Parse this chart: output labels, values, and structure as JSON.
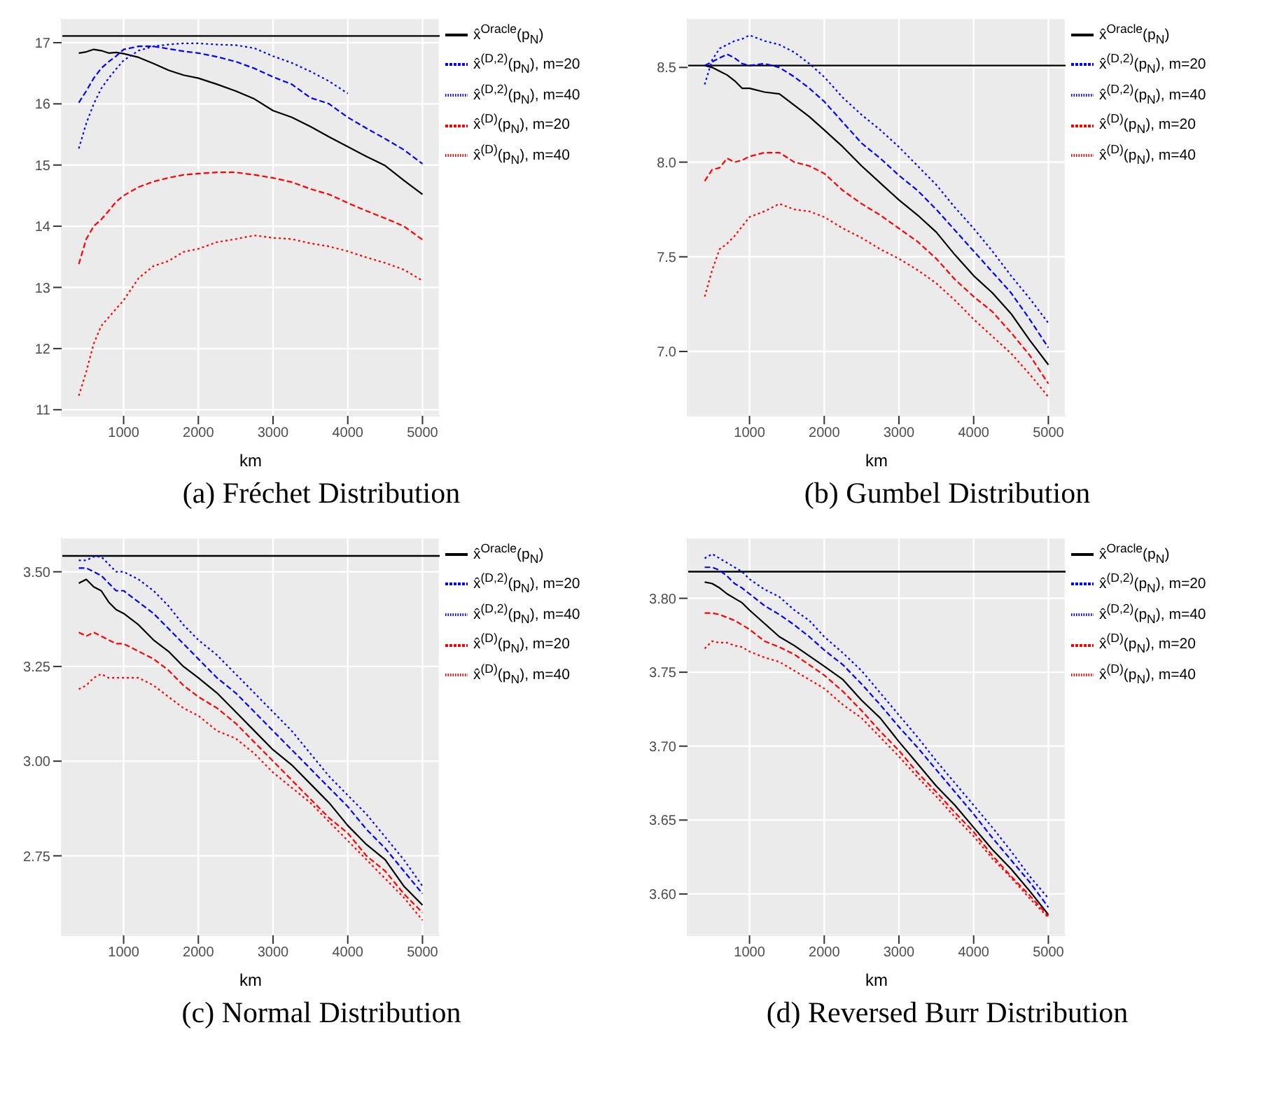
{
  "chart_data": [
    {
      "type": "line",
      "title": "(a) Fréchet Distribution",
      "xlabel": "km",
      "legend": "right",
      "grid": true,
      "marker": "none",
      "x": [
        400,
        500,
        600,
        700,
        800,
        900,
        1000,
        1200,
        1400,
        1600,
        1800,
        2000,
        2250,
        2500,
        2750,
        3000,
        3250,
        3500,
        3750,
        4000,
        4250,
        4500,
        4750,
        5000
      ],
      "xlim": [
        170,
        5230
      ],
      "xticks": [
        1000,
        2000,
        3000,
        4000,
        5000
      ],
      "ylim": [
        10.9,
        17.4
      ],
      "yticks": [
        11,
        12,
        13,
        14,
        15,
        16,
        17
      ],
      "ref_lines": [
        {
          "axis": "y",
          "value": 17.11,
          "color": "#000000",
          "line_style": "solid"
        }
      ],
      "series": [
        {
          "name": "x̂$^{Oracle}$(p$_{N}$)",
          "color": "#000000",
          "line_style": "solid",
          "values": [
            16.83,
            16.85,
            16.89,
            16.87,
            16.83,
            16.84,
            16.82,
            16.76,
            16.66,
            16.55,
            16.47,
            16.42,
            16.32,
            16.21,
            16.08,
            15.89,
            15.78,
            15.63,
            15.46,
            15.3,
            15.14,
            14.99,
            14.75,
            14.52
          ]
        },
        {
          "name": "x̂$^{(D,2)}$(p$_{N}$), m=20",
          "color": "#0000ff",
          "line_style": "dashed",
          "values": [
            16.02,
            16.21,
            16.42,
            16.58,
            16.69,
            16.78,
            16.89,
            16.94,
            16.94,
            16.9,
            16.86,
            16.83,
            16.77,
            16.69,
            16.58,
            16.44,
            16.32,
            16.1,
            16.0,
            15.78,
            15.6,
            15.43,
            15.25,
            15.02
          ]
        },
        {
          "name": "x̂$^{(D,2)}$(p$_{N}$), m=40",
          "color": "#0000ff",
          "line_style": "dotted",
          "values": [
            15.27,
            15.68,
            16.0,
            16.25,
            16.42,
            16.57,
            16.71,
            16.87,
            16.94,
            16.97,
            16.99,
            16.99,
            16.97,
            16.96,
            16.91,
            16.78,
            16.67,
            16.53,
            16.37,
            16.17,
            null,
            null,
            null,
            null
          ]
        },
        {
          "name": "x̂$^{(D)}$(p$_{N}$), m=20",
          "color": "#ff0000",
          "line_style": "dashed",
          "values": [
            13.38,
            13.79,
            14.0,
            14.11,
            14.25,
            14.4,
            14.5,
            14.64,
            14.73,
            14.79,
            14.84,
            14.86,
            14.88,
            14.88,
            14.84,
            14.79,
            14.72,
            14.61,
            14.52,
            14.38,
            14.25,
            14.13,
            14.0,
            13.78
          ]
        },
        {
          "name": "x̂$^{(D)}$(p$_{N}$), m=40",
          "color": "#ff0000",
          "line_style": "dotted",
          "values": [
            11.23,
            11.62,
            12.08,
            12.37,
            12.51,
            12.65,
            12.79,
            13.15,
            13.35,
            13.43,
            13.58,
            13.63,
            13.74,
            13.79,
            13.85,
            13.81,
            13.79,
            13.72,
            13.67,
            13.59,
            13.49,
            13.4,
            13.29,
            13.11
          ]
        }
      ]
    },
    {
      "type": "line",
      "title": "(b) Gumbel Distribution",
      "xlabel": "km",
      "legend": "right",
      "grid": true,
      "marker": "none",
      "x": [
        400,
        500,
        600,
        700,
        800,
        900,
        1000,
        1200,
        1400,
        1600,
        1800,
        2000,
        2250,
        2500,
        2750,
        3000,
        3250,
        3500,
        3750,
        4000,
        4250,
        4500,
        4750,
        5000
      ],
      "xlim": [
        170,
        5230
      ],
      "xticks": [
        1000,
        2000,
        3000,
        4000,
        5000
      ],
      "ylim": [
        6.66,
        8.76
      ],
      "yticks": [
        {
          "value": 7,
          "label": "7.0"
        },
        7.5,
        {
          "value": 8,
          "label": "8.0"
        },
        8.5
      ],
      "ref_lines": [
        {
          "axis": "y",
          "value": 8.51,
          "color": "#000000",
          "line_style": "solid"
        }
      ],
      "series": [
        {
          "name": "x̂$^{Oracle}$(p$_{N}$)",
          "color": "#000000",
          "line_style": "solid",
          "values": [
            8.51,
            8.5,
            8.48,
            8.46,
            8.43,
            8.39,
            8.39,
            8.37,
            8.36,
            8.3,
            8.24,
            8.17,
            8.08,
            7.98,
            7.89,
            7.8,
            7.72,
            7.63,
            7.51,
            7.4,
            7.31,
            7.2,
            7.06,
            6.93
          ]
        },
        {
          "name": "x̂$^{(D,2)}$(p$_{N}$), m=20",
          "color": "#0000ff",
          "line_style": "dashed",
          "values": [
            8.51,
            8.53,
            8.55,
            8.57,
            8.55,
            8.52,
            8.51,
            8.52,
            8.5,
            8.45,
            8.39,
            8.32,
            8.21,
            8.1,
            8.02,
            7.93,
            7.85,
            7.75,
            7.64,
            7.53,
            7.42,
            7.31,
            7.17,
            7.02
          ]
        },
        {
          "name": "x̂$^{(D,2)}$(p$_{N}$), m=40",
          "color": "#0000ff",
          "line_style": "dotted",
          "values": [
            8.41,
            8.54,
            8.6,
            8.62,
            8.64,
            8.65,
            8.67,
            8.64,
            8.62,
            8.58,
            8.52,
            8.45,
            8.34,
            8.25,
            8.17,
            8.08,
            7.98,
            7.88,
            7.76,
            7.65,
            7.53,
            7.4,
            7.28,
            7.15
          ]
        },
        {
          "name": "x̂$^{(D)}$(p$_{N}$), m=20",
          "color": "#ff0000",
          "line_style": "dashed",
          "values": [
            7.9,
            7.96,
            7.97,
            8.02,
            8.0,
            8.01,
            8.03,
            8.05,
            8.05,
            8.0,
            7.98,
            7.94,
            7.85,
            7.78,
            7.72,
            7.65,
            7.58,
            7.49,
            7.38,
            7.29,
            7.21,
            7.1,
            6.98,
            6.83
          ]
        },
        {
          "name": "x̂$^{(D)}$(p$_{N}$), m=40",
          "color": "#ff0000",
          "line_style": "dotted",
          "values": [
            7.29,
            7.43,
            7.54,
            7.57,
            7.61,
            7.66,
            7.71,
            7.74,
            7.78,
            7.75,
            7.74,
            7.71,
            7.65,
            7.6,
            7.54,
            7.49,
            7.43,
            7.36,
            7.27,
            7.17,
            7.08,
            6.99,
            6.88,
            6.76
          ]
        }
      ]
    },
    {
      "type": "line",
      "title": "(c) Normal Distribution",
      "xlabel": "km",
      "legend": "right",
      "grid": true,
      "marker": "none",
      "x": [
        400,
        500,
        600,
        700,
        800,
        900,
        1000,
        1200,
        1400,
        1600,
        1800,
        2000,
        2250,
        2500,
        2750,
        3000,
        3250,
        3500,
        3750,
        4000,
        4250,
        4500,
        4750,
        5000
      ],
      "xlim": [
        170,
        5230
      ],
      "xticks": [
        1000,
        2000,
        3000,
        4000,
        5000
      ],
      "ylim": [
        2.54,
        3.59
      ],
      "yticks": [
        2.75,
        {
          "value": 3,
          "label": "3.00"
        },
        3.25,
        {
          "value": 3.5,
          "label": "3.50"
        }
      ],
      "ref_lines": [
        {
          "axis": "y",
          "value": 3.542,
          "color": "#000000",
          "line_style": "solid"
        }
      ],
      "series": [
        {
          "name": "x̂$^{Oracle}$(p$_{N}$)",
          "color": "#000000",
          "line_style": "solid",
          "values": [
            3.47,
            3.48,
            3.46,
            3.45,
            3.42,
            3.4,
            3.39,
            3.36,
            3.32,
            3.29,
            3.25,
            3.22,
            3.18,
            3.13,
            3.08,
            3.03,
            2.99,
            2.94,
            2.89,
            2.83,
            2.78,
            2.74,
            2.67,
            2.62
          ]
        },
        {
          "name": "x̂$^{(D,2)}$(p$_{N}$), m=20",
          "color": "#0000ff",
          "line_style": "dashed",
          "values": [
            3.51,
            3.51,
            3.5,
            3.49,
            3.47,
            3.45,
            3.45,
            3.42,
            3.39,
            3.35,
            3.31,
            3.27,
            3.22,
            3.18,
            3.13,
            3.08,
            3.03,
            2.98,
            2.93,
            2.88,
            2.82,
            2.77,
            2.71,
            2.65
          ]
        },
        {
          "name": "x̂$^{(D,2)}$(p$_{N}$), m=40",
          "color": "#0000ff",
          "line_style": "dotted",
          "values": [
            3.53,
            3.53,
            3.54,
            3.54,
            3.52,
            3.5,
            3.5,
            3.48,
            3.45,
            3.41,
            3.36,
            3.32,
            3.28,
            3.23,
            3.18,
            3.13,
            3.08,
            3.02,
            2.96,
            2.91,
            2.86,
            2.8,
            2.74,
            2.67
          ]
        },
        {
          "name": "x̂$^{(D)}$(p$_{N}$), m=20",
          "color": "#ff0000",
          "line_style": "dashed",
          "values": [
            3.34,
            3.33,
            3.34,
            3.33,
            3.32,
            3.31,
            3.31,
            3.29,
            3.27,
            3.24,
            3.2,
            3.17,
            3.14,
            3.1,
            3.05,
            3.0,
            2.95,
            2.9,
            2.85,
            2.81,
            2.75,
            2.71,
            2.65,
            2.6
          ]
        },
        {
          "name": "x̂$^{(D)}$(p$_{N}$), m=40",
          "color": "#ff0000",
          "line_style": "dotted",
          "values": [
            3.19,
            3.2,
            3.22,
            3.23,
            3.22,
            3.22,
            3.22,
            3.22,
            3.2,
            3.17,
            3.14,
            3.12,
            3.08,
            3.06,
            3.02,
            2.97,
            2.93,
            2.89,
            2.84,
            2.79,
            2.74,
            2.69,
            2.64,
            2.58
          ]
        }
      ]
    },
    {
      "type": "line",
      "title": "(d) Reversed Burr Distribution",
      "xlabel": "km",
      "legend": "right",
      "grid": true,
      "marker": "none",
      "x": [
        400,
        500,
        600,
        700,
        800,
        900,
        1000,
        1200,
        1400,
        1600,
        1800,
        2000,
        2250,
        2500,
        2750,
        3000,
        3250,
        3500,
        3750,
        4000,
        4250,
        4500,
        4750,
        5000
      ],
      "xlim": [
        170,
        5230
      ],
      "xticks": [
        1000,
        2000,
        3000,
        4000,
        5000
      ],
      "ylim": [
        3.572,
        3.841
      ],
      "yticks": [
        {
          "value": 3.6,
          "label": "3.60"
        },
        3.65,
        {
          "value": 3.7,
          "label": "3.70"
        },
        3.75,
        {
          "value": 3.8,
          "label": "3.80"
        }
      ],
      "ref_lines": [
        {
          "axis": "y",
          "value": 3.818,
          "color": "#000000",
          "line_style": "solid"
        }
      ],
      "series": [
        {
          "name": "x̂$^{Oracle}$(p$_{N}$)",
          "color": "#000000",
          "line_style": "solid",
          "values": [
            3.811,
            3.81,
            3.807,
            3.803,
            3.8,
            3.797,
            3.792,
            3.783,
            3.774,
            3.768,
            3.761,
            3.754,
            3.745,
            3.731,
            3.719,
            3.703,
            3.688,
            3.673,
            3.66,
            3.645,
            3.63,
            3.617,
            3.602,
            3.586
          ]
        },
        {
          "name": "x̂$^{(D,2)}$(p$_{N}$), m=20",
          "color": "#0000ff",
          "line_style": "dashed",
          "values": [
            3.821,
            3.821,
            3.819,
            3.815,
            3.81,
            3.807,
            3.803,
            3.795,
            3.789,
            3.782,
            3.774,
            3.765,
            3.755,
            3.742,
            3.728,
            3.713,
            3.699,
            3.684,
            3.669,
            3.654,
            3.638,
            3.623,
            3.608,
            3.591
          ]
        },
        {
          "name": "x̂$^{(D,2)}$(p$_{N}$), m=40",
          "color": "#0000ff",
          "line_style": "dotted",
          "values": [
            3.827,
            3.83,
            3.827,
            3.824,
            3.821,
            3.818,
            3.813,
            3.806,
            3.801,
            3.792,
            3.785,
            3.774,
            3.763,
            3.751,
            3.736,
            3.721,
            3.706,
            3.69,
            3.675,
            3.66,
            3.645,
            3.629,
            3.612,
            3.597
          ]
        },
        {
          "name": "x̂$^{(D)}$(p$_{N}$), m=20",
          "color": "#ff0000",
          "line_style": "dashed",
          "values": [
            3.79,
            3.79,
            3.789,
            3.787,
            3.785,
            3.782,
            3.779,
            3.771,
            3.767,
            3.762,
            3.755,
            3.748,
            3.737,
            3.724,
            3.71,
            3.697,
            3.682,
            3.669,
            3.655,
            3.642,
            3.626,
            3.612,
            3.599,
            3.585
          ]
        },
        {
          "name": "x̂$^{(D)}$(p$_{N}$), m=40",
          "color": "#ff0000",
          "line_style": "dotted",
          "values": [
            3.766,
            3.771,
            3.77,
            3.77,
            3.768,
            3.767,
            3.764,
            3.76,
            3.757,
            3.751,
            3.745,
            3.739,
            3.728,
            3.719,
            3.706,
            3.693,
            3.679,
            3.666,
            3.652,
            3.639,
            3.624,
            3.611,
            3.597,
            3.584
          ]
        }
      ]
    }
  ]
}
